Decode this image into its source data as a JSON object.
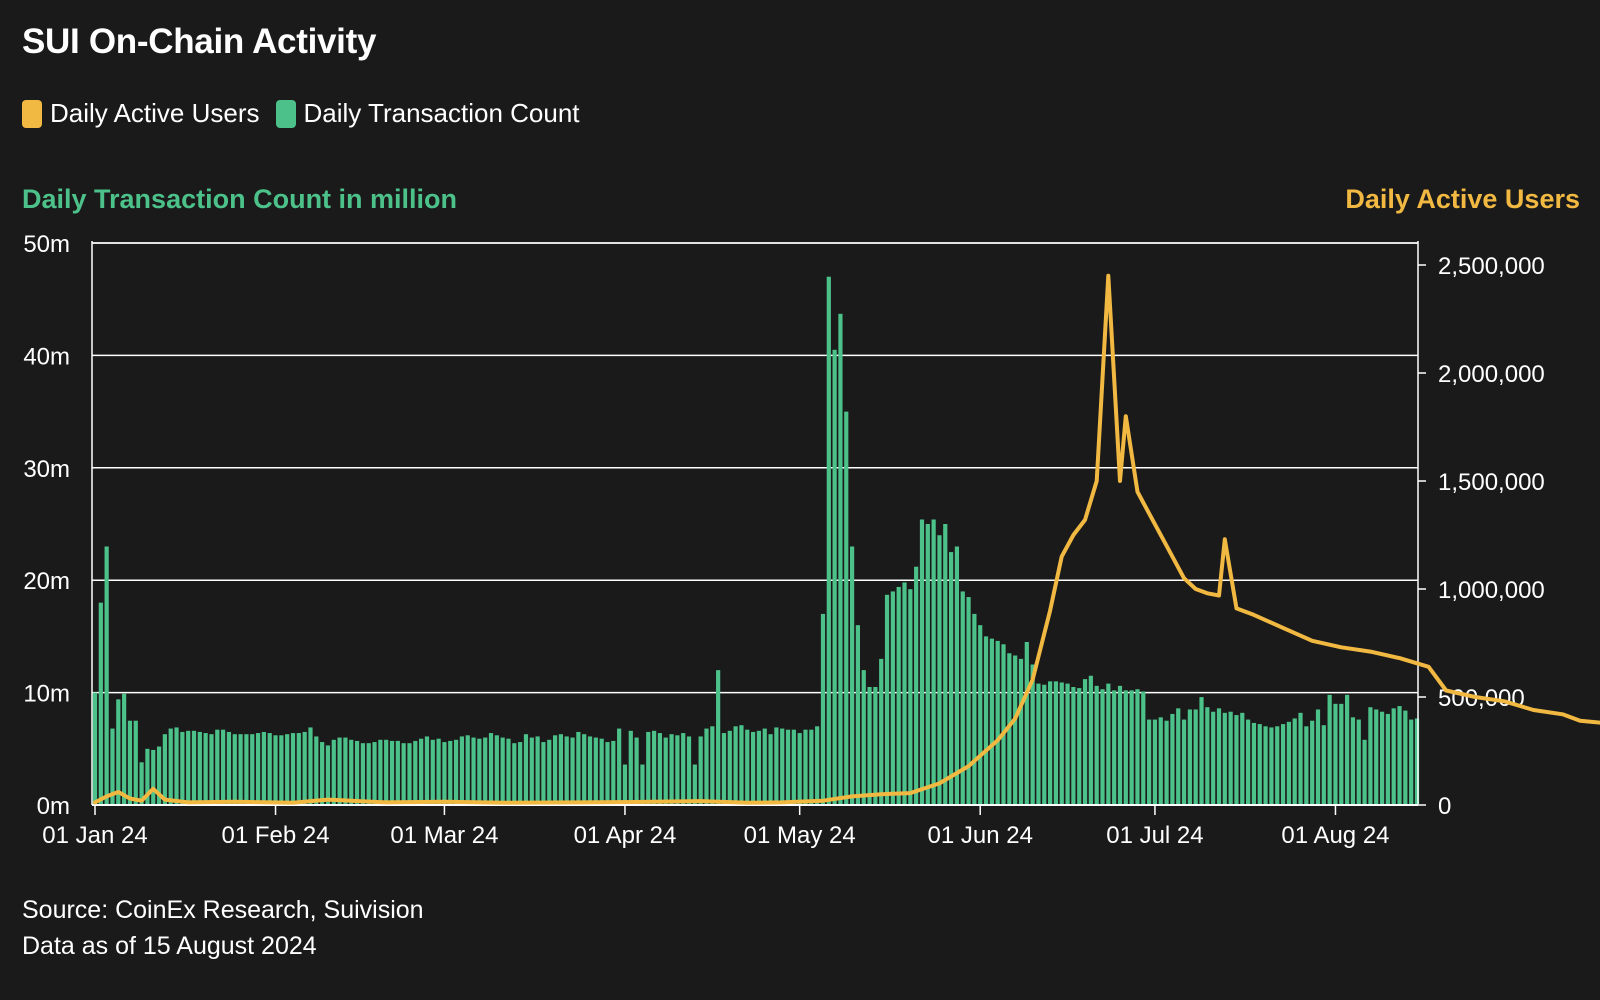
{
  "title": "SUI On-Chain Activity",
  "colors": {
    "background": "#1a1a1a",
    "bars": "#4cc28a",
    "line": "#f2b942",
    "grid": "#ffffff",
    "text": "#ffffff"
  },
  "legend": {
    "users_label": "Daily Active Users",
    "tx_label": "Daily Transaction Count"
  },
  "axis_titles": {
    "left": "Daily Transaction Count in million",
    "right": "Daily Active Users"
  },
  "source": {
    "line1": "Source: CoinEx Research, Suivision",
    "line2": "Data as of 15 August 2024"
  },
  "chart_data": {
    "type": "bar+line",
    "x_ticks": [
      "01 Jan 24",
      "01 Feb 24",
      "01 Mar 24",
      "01 Apr 24",
      "01 May 24",
      "01 Jun 24",
      "01 Jul 24",
      "01 Aug 24"
    ],
    "x_range": [
      "2024-01-01",
      "2024-08-15"
    ],
    "left_axis": {
      "ticks": [
        "0m",
        "10m",
        "20m",
        "30m",
        "40m",
        "50m"
      ],
      "range": [
        0,
        50
      ],
      "unit": "million"
    },
    "right_axis": {
      "ticks": [
        "0",
        "500,000",
        "1,000,000",
        "1,500,000",
        "2,000,000",
        "2,500,000"
      ],
      "range": [
        0,
        2600000
      ]
    },
    "grid": "horizontal",
    "legend_position": "top-left",
    "series": [
      {
        "name": "Daily Transaction Count",
        "kind": "bar",
        "axis": "left",
        "unit": "million",
        "values": [
          10.0,
          18.0,
          23.0,
          6.8,
          9.4,
          9.9,
          7.5,
          7.5,
          3.8,
          5.0,
          4.9,
          5.2,
          6.3,
          6.8,
          6.9,
          6.5,
          6.6,
          6.6,
          6.5,
          6.4,
          6.3,
          6.7,
          6.7,
          6.5,
          6.3,
          6.3,
          6.3,
          6.3,
          6.4,
          6.5,
          6.4,
          6.2,
          6.2,
          6.3,
          6.4,
          6.4,
          6.5,
          6.9,
          6.1,
          5.6,
          5.3,
          5.8,
          6.0,
          6.0,
          5.8,
          5.7,
          5.5,
          5.5,
          5.6,
          5.8,
          5.8,
          5.7,
          5.7,
          5.5,
          5.5,
          5.7,
          5.9,
          6.1,
          5.8,
          5.9,
          5.6,
          5.7,
          5.8,
          6.1,
          6.2,
          6.0,
          5.9,
          6.0,
          6.4,
          6.2,
          6.0,
          5.9,
          5.5,
          5.6,
          6.3,
          6.0,
          6.1,
          5.6,
          5.8,
          6.2,
          6.3,
          6.1,
          6.0,
          6.5,
          6.3,
          6.1,
          6.0,
          5.9,
          5.6,
          5.7,
          6.8,
          3.6,
          6.6,
          6.0,
          3.6,
          6.5,
          6.6,
          6.4,
          6.0,
          6.3,
          6.2,
          6.4,
          6.1,
          3.6,
          6.1,
          6.8,
          7.0,
          12.0,
          6.4,
          6.6,
          7.0,
          7.1,
          6.7,
          6.5,
          6.6,
          6.8,
          6.3,
          6.9,
          6.8,
          6.7,
          6.7,
          6.4,
          6.7,
          6.7,
          7.0,
          17.0,
          47.0,
          40.5,
          43.7,
          35.0,
          23.0,
          16.0,
          12.0,
          10.5,
          10.5,
          13.0,
          18.7,
          19.0,
          19.4,
          19.8,
          19.2,
          21.2,
          25.4,
          25.0,
          25.4,
          24.0,
          25.0,
          22.5,
          23.0,
          19.0,
          18.5,
          17.0,
          16.0,
          15.0,
          14.8,
          14.6,
          14.3,
          13.5,
          13.3,
          13.0,
          14.5,
          12.5,
          10.8,
          10.7,
          11.0,
          11.0,
          10.9,
          10.8,
          10.5,
          10.4,
          11.2,
          11.5,
          10.6,
          10.3,
          10.8,
          10.2,
          10.6,
          10.2,
          10.2,
          10.3,
          10.1,
          7.6,
          7.6,
          7.8,
          7.5,
          8.1,
          8.6,
          7.6,
          8.5,
          8.5,
          9.6,
          8.7,
          8.3,
          8.6,
          8.2,
          8.3,
          8.0,
          8.2,
          7.6,
          7.3,
          7.2,
          7.0,
          6.9,
          7.0,
          7.2,
          7.4,
          7.7,
          8.2,
          7.0,
          7.5,
          8.5,
          7.1,
          9.8,
          9.0,
          9.0,
          9.8,
          7.8,
          7.6,
          5.8,
          8.7,
          8.5,
          8.3,
          8.1,
          8.6,
          8.8,
          8.4,
          7.6,
          7.7
        ]
      },
      {
        "name": "Daily Active Users",
        "kind": "line",
        "axis": "right",
        "points": [
          [
            0,
            12000
          ],
          [
            2,
            40000
          ],
          [
            4,
            60000
          ],
          [
            6,
            30000
          ],
          [
            8,
            20000
          ],
          [
            10,
            75000
          ],
          [
            12,
            25000
          ],
          [
            16,
            12000
          ],
          [
            24,
            15000
          ],
          [
            34,
            10000
          ],
          [
            40,
            25000
          ],
          [
            50,
            12000
          ],
          [
            60,
            15000
          ],
          [
            70,
            10000
          ],
          [
            84,
            12000
          ],
          [
            96,
            15000
          ],
          [
            104,
            18000
          ],
          [
            112,
            10000
          ],
          [
            118,
            12000
          ],
          [
            125,
            20000
          ],
          [
            130,
            40000
          ],
          [
            135,
            50000
          ],
          [
            140,
            55000
          ],
          [
            145,
            100000
          ],
          [
            150,
            180000
          ],
          [
            155,
            300000
          ],
          [
            158,
            400000
          ],
          [
            161,
            580000
          ],
          [
            164,
            900000
          ],
          [
            166,
            1150000
          ],
          [
            168,
            1250000
          ],
          [
            170,
            1320000
          ],
          [
            172,
            1500000
          ],
          [
            174,
            2450000
          ],
          [
            176,
            1500000
          ],
          [
            177,
            1800000
          ],
          [
            179,
            1450000
          ],
          [
            181,
            1350000
          ],
          [
            184,
            1200000
          ],
          [
            187,
            1050000
          ],
          [
            189,
            1000000
          ],
          [
            191,
            980000
          ],
          [
            193,
            970000
          ],
          [
            194,
            1230000
          ],
          [
            196,
            910000
          ],
          [
            199,
            880000
          ],
          [
            204,
            820000
          ],
          [
            209,
            760000
          ],
          [
            214,
            730000
          ],
          [
            219,
            710000
          ],
          [
            224,
            680000
          ],
          [
            229,
            640000
          ],
          [
            232,
            530000
          ],
          [
            237,
            500000
          ],
          [
            242,
            480000
          ],
          [
            247,
            440000
          ],
          [
            252,
            420000
          ],
          [
            255,
            390000
          ],
          [
            259,
            380000
          ],
          [
            262,
            350000
          ],
          [
            264,
            400000
          ],
          [
            267,
            450000
          ],
          [
            271,
            520000
          ],
          [
            273,
            440000
          ],
          [
            276,
            500000
          ],
          [
            279,
            450000
          ],
          [
            283,
            450000
          ],
          [
            285,
            350000
          ],
          [
            287,
            450000
          ],
          [
            292,
            420000
          ],
          [
            295,
            450000
          ],
          [
            298,
            400000
          ],
          [
            302,
            400000
          ]
        ]
      }
    ]
  }
}
